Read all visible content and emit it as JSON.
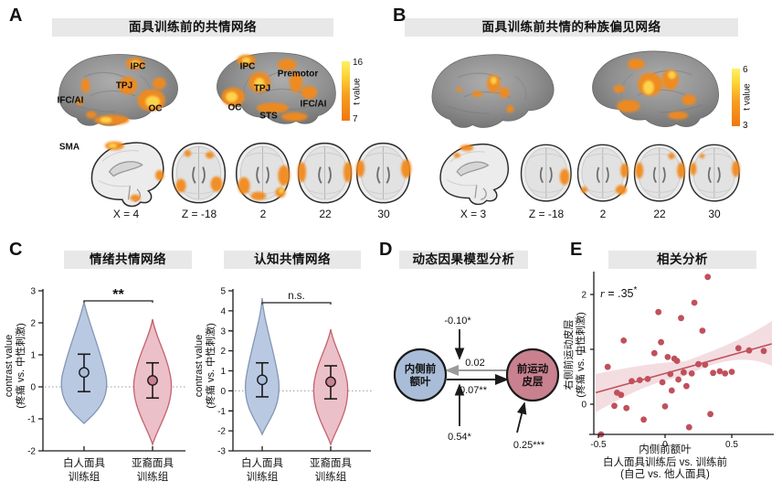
{
  "figure": {
    "panelA": {
      "label": "A",
      "title": "面具训练前的共情网络",
      "colorbar": {
        "max": "16",
        "min": "7",
        "label": "t value"
      },
      "regions": {
        "left": [
          "IPC",
          "TPJ",
          "IFC/AI",
          "OC"
        ],
        "right": [
          "IPC",
          "Premotor",
          "TPJ",
          "OC",
          "STS",
          "IFC/AI"
        ],
        "sma": "SMA"
      },
      "slices": [
        "X = 4",
        "Z = -18",
        "2",
        "22",
        "30"
      ]
    },
    "panelB": {
      "label": "B",
      "title": "面具训练前共情的种族偏见网络",
      "colorbar": {
        "max": "6",
        "min": "3",
        "label": "t value"
      },
      "slices": [
        "X = 3",
        "Z = -18",
        "2",
        "22",
        "30"
      ]
    },
    "panelC": {
      "label": "C",
      "plots": [
        {
          "title": "情绪共情网络",
          "ylabel_line1": "contrast value",
          "ylabel_line2": "(疼痛 vs. 中性刺激)",
          "yticks": [
            "3",
            "2",
            "1",
            "0",
            "-1",
            "-2"
          ],
          "sig": "**",
          "groups": [
            {
              "line1": "白人面具",
              "line2": "训练组"
            },
            {
              "line1": "亚裔面具",
              "line2": "训练组"
            }
          ]
        },
        {
          "title": "认知共情网络",
          "ylabel_line1": "contrast value",
          "ylabel_line2": "(疼痛 vs. 中性刺激)",
          "yticks": [
            "5",
            "4",
            "3",
            "2",
            "1",
            "0",
            "-1",
            "-2",
            "-3"
          ],
          "sig": "n.s.",
          "groups": [
            {
              "line1": "白人面具",
              "line2": "训练组"
            },
            {
              "line1": "亚裔面具",
              "line2": "训练组"
            }
          ]
        }
      ]
    },
    "panelD": {
      "label": "D",
      "title": "动态因果模型分析",
      "nodes": [
        {
          "line1": "内侧前",
          "line2": "额叶"
        },
        {
          "line1": "前运动",
          "line2": "皮层"
        }
      ],
      "values": {
        "top_modulation": "-0.10*",
        "backward": "0.02",
        "forward": "0.07**",
        "bottom_modulation": "0.54*",
        "driving_input": "0.25***"
      }
    },
    "panelE": {
      "label": "E",
      "title": "相关分析",
      "r_var": "r",
      "r_rest": " = .35",
      "r_star": "*",
      "ylabel_line1": "右侧前运动皮层",
      "ylabel_line2": "(疼痛 vs. 中性刺激)",
      "xlabel_line1": "内侧前额叶",
      "xlabel_line2": "白人面具训练后 vs. 训练前",
      "xlabel_line3": "(自己 vs. 他人面具)",
      "xticks": [
        "-0.5",
        "0",
        "0.5"
      ],
      "yticks": [
        "0",
        "1",
        "2"
      ]
    }
  },
  "colors": {
    "activation": "#f28a1d",
    "activation_peak": "#ffd84d",
    "title_bg": "#e8e8e8",
    "violin_blue_fill": "#bac9e2",
    "violin_blue_edge": "#8296b5",
    "violin_red_fill": "#ecc0c8",
    "violin_red_edge": "#c4626e",
    "node_blue": "#a9bdd8",
    "node_red": "#c9808f",
    "scatter_dot": "#c0505c",
    "band_fill": "#f3dde1"
  },
  "chart_data": [
    {
      "type": "violin",
      "title": "情绪共情网络",
      "ylabel": "contrast value (疼痛 vs. 中性刺激)",
      "ylim": [
        -2,
        3
      ],
      "categories": [
        "白人面具训练组",
        "亚裔面具训练组"
      ],
      "series": [
        {
          "name": "白人面具训练组",
          "mean": 0.45,
          "whiskers": [
            -0.15,
            1.02
          ],
          "range": [
            -1.15,
            2.65
          ],
          "color": "#a9bdd8"
        },
        {
          "name": "亚裔面具训练组",
          "mean": 0.2,
          "whiskers": [
            -0.35,
            0.75
          ],
          "range": [
            -1.8,
            2.1
          ],
          "color": "#c9808f"
        }
      ],
      "significance": "**",
      "zero_line": true
    },
    {
      "type": "violin",
      "title": "认知共情网络",
      "ylabel": "contrast value (疼痛 vs. 中性刺激)",
      "ylim": [
        -3,
        5
      ],
      "categories": [
        "白人面具训练组",
        "亚裔面具训练组"
      ],
      "series": [
        {
          "name": "白人面具训练组",
          "mean": 0.55,
          "whiskers": [
            -0.3,
            1.4
          ],
          "range": [
            -2.2,
            4.65
          ],
          "color": "#a9bdd8"
        },
        {
          "name": "亚裔面具训练组",
          "mean": 0.45,
          "whiskers": [
            -0.4,
            1.25
          ],
          "range": [
            -2.7,
            3.1
          ],
          "color": "#c9808f"
        }
      ],
      "significance": "n.s.",
      "zero_line": true
    },
    {
      "type": "diagram",
      "title": "动态因果模型分析",
      "nodes": [
        "内侧前额叶",
        "前运动皮层"
      ],
      "edges": [
        {
          "from": "内侧前额叶",
          "to": "前运动皮层",
          "value": "0.07**",
          "style": "black"
        },
        {
          "from": "前运动皮层",
          "to": "内侧前额叶",
          "value": "0.02",
          "style": "gray"
        },
        {
          "label": "-0.10*",
          "meaning": "modulation on backward connection"
        },
        {
          "label": "0.54*",
          "meaning": "modulation on forward connection"
        },
        {
          "label": "0.25***",
          "meaning": "driving input to 前运动皮层"
        }
      ]
    },
    {
      "type": "scatter",
      "title": "相关分析",
      "r": ".35*",
      "xlabel": "内侧前额叶 白人面具训练后 vs. 训练前 (自己 vs. 他人面具)",
      "ylabel": "右侧前运动皮层 (疼痛 vs. 中性刺激)",
      "xlim": [
        -0.5,
        0.8
      ],
      "ylim": [
        -0.6,
        2.4
      ],
      "xticks": [
        -0.5,
        0,
        0.5
      ],
      "yticks": [
        0,
        1,
        2
      ],
      "regression": {
        "x": [
          -0.52,
          0.8
        ],
        "y": [
          0.21,
          1.1
        ]
      },
      "points": [
        [
          -0.48,
          -0.55
        ],
        [
          -0.43,
          0.68
        ],
        [
          -0.38,
          -0.03
        ],
        [
          -0.36,
          0.21
        ],
        [
          -0.33,
          0.17
        ],
        [
          -0.31,
          1.16
        ],
        [
          -0.29,
          -0.07
        ],
        [
          -0.25,
          0.42
        ],
        [
          -0.19,
          0.44
        ],
        [
          -0.16,
          -0.28
        ],
        [
          -0.13,
          0.46
        ],
        [
          -0.08,
          0.93
        ],
        [
          -0.05,
          1.68
        ],
        [
          -0.03,
          1.13
        ],
        [
          -0.02,
          0.4
        ],
        [
          0.0,
          -0.04
        ],
        [
          0.02,
          0.86
        ],
        [
          0.04,
          0.55
        ],
        [
          0.05,
          0.25
        ],
        [
          0.07,
          0.83
        ],
        [
          0.09,
          0.79
        ],
        [
          0.1,
          0.45
        ],
        [
          0.12,
          1.57
        ],
        [
          0.14,
          0.58
        ],
        [
          0.16,
          0.33
        ],
        [
          0.18,
          -0.42
        ],
        [
          0.2,
          0.56
        ],
        [
          0.22,
          1.85
        ],
        [
          0.25,
          0.73
        ],
        [
          0.28,
          1.34
        ],
        [
          0.3,
          0.72
        ],
        [
          0.32,
          2.32
        ],
        [
          0.34,
          -0.18
        ],
        [
          0.36,
          0.57
        ],
        [
          0.41,
          0.6
        ],
        [
          0.45,
          0.56
        ],
        [
          0.5,
          0.59
        ],
        [
          0.55,
          1.02
        ],
        [
          0.63,
          0.98
        ],
        [
          0.74,
          0.97
        ]
      ]
    }
  ]
}
